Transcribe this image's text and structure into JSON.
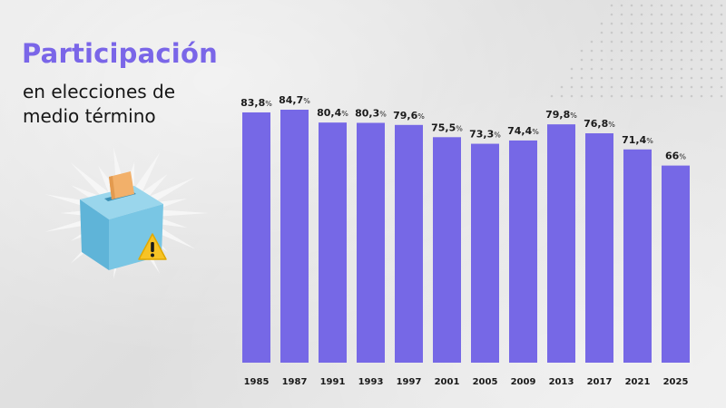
{
  "heading": {
    "title": "Participación",
    "subtitle": "en elecciones de medio término"
  },
  "colors": {
    "bar": "#7668e6",
    "title": "#7a66e8",
    "label": "#1a1a1a"
  },
  "illustration": {
    "icons": [
      "ballot-box-icon",
      "warning-icon"
    ]
  },
  "chart_data": {
    "type": "bar",
    "title": "",
    "xlabel": "",
    "ylabel": "",
    "grid": false,
    "ylim": [
      0,
      100
    ],
    "unit": "%",
    "categories": [
      "1985",
      "1987",
      "1991",
      "1993",
      "1997",
      "2001",
      "2005",
      "2009",
      "2013",
      "2017",
      "2021",
      "2025"
    ],
    "values": [
      83.8,
      84.7,
      80.4,
      80.3,
      79.6,
      75.5,
      73.3,
      74.4,
      79.8,
      76.8,
      71.4,
      66
    ],
    "value_labels": [
      "83,8",
      "84,7",
      "80,4",
      "80,3",
      "79,6",
      "75,5",
      "73,3",
      "74,4",
      "79,8",
      "76,8",
      "71,4",
      "66"
    ]
  }
}
